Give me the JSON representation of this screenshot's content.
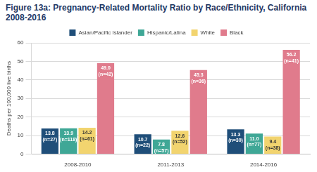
{
  "chart_data": {
    "type": "bar",
    "title": "Figure 13a: Pregnancy-Related Mortality Ratio by Race/Ethnicity, California 2008-2016",
    "y_label": "Deaths per 100,000 live births",
    "categories": [
      "2008-2010",
      "2011-2013",
      "2014-2016"
    ],
    "series": [
      {
        "name": "Asian/Pacific Islander",
        "color": "#1f4e79",
        "values": [
          13.8,
          10.7,
          13.3
        ],
        "value_labels": [
          [
            "13.8",
            "(n=27)"
          ],
          [
            "10.7",
            "(n=22)"
          ],
          [
            "13.3",
            "(n=30)"
          ]
        ]
      },
      {
        "name": "Hispanic/Latina",
        "color": "#3fa796",
        "values": [
          13.9,
          7.8,
          11.0
        ],
        "value_labels": [
          [
            "13.9",
            "(n=118)"
          ],
          [
            "7.8",
            "(n=57)"
          ],
          [
            "11.0",
            "(n=77)"
          ]
        ]
      },
      {
        "name": "White",
        "color": "#f2d46f",
        "values": [
          14.2,
          12.6,
          9.4
        ],
        "value_labels": [
          [
            "14.2",
            "(n=61)"
          ],
          [
            "12.6",
            "(n=52)"
          ],
          [
            "9.4",
            "(n=38)"
          ]
        ]
      },
      {
        "name": "Black",
        "color": "#e07b8c",
        "values": [
          49.0,
          45.3,
          56.2
        ],
        "value_labels": [
          [
            "49.0",
            "(n=42)"
          ],
          [
            "45.3",
            "(n=36)"
          ],
          [
            "56.2",
            "(n=41)"
          ]
        ]
      }
    ],
    "ylim": [
      0,
      60
    ],
    "yticks": [
      0,
      10,
      20,
      30,
      40,
      50,
      60
    ],
    "grid": true,
    "legend": "top",
    "data_labels": true
  }
}
